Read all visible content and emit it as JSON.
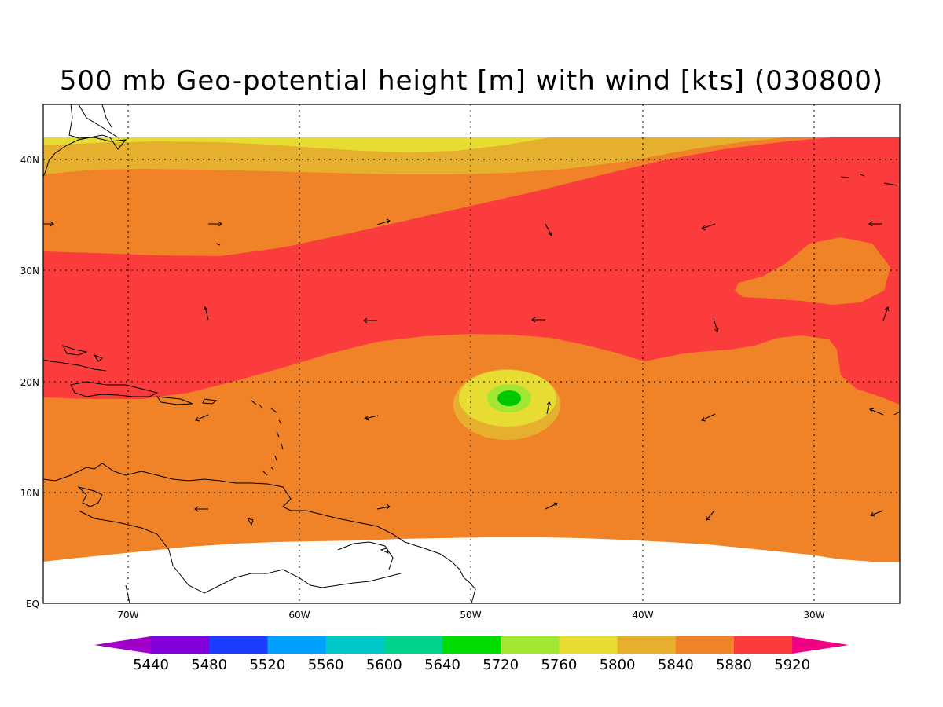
{
  "title": "500 mb Geo-potential height [m] with wind [kts] (030800)",
  "map": {
    "lat_labels": [
      "40N",
      "30N",
      "20N",
      "10N",
      "EQ"
    ],
    "lon_labels": [
      "70W",
      "60W",
      "50W",
      "40W",
      "30W"
    ],
    "lat_range": [
      0,
      45
    ],
    "lon_range": [
      -75,
      -25
    ],
    "field_colors": {
      "5720": "#00c800",
      "5760": "#a0e632",
      "5800": "#e6dc32",
      "5840": "#e6af2d",
      "5880": "#f08228",
      "5920": "#fa3c3c"
    }
  },
  "colorbar": {
    "labels": [
      "5440",
      "5480",
      "5520",
      "5560",
      "5600",
      "5640",
      "5720",
      "5760",
      "5800",
      "5840",
      "5880",
      "5920"
    ],
    "colors": [
      "#a000c8",
      "#8200dc",
      "#1e3cff",
      "#00a0ff",
      "#00c8c8",
      "#00d28c",
      "#00dc00",
      "#a0e632",
      "#e6dc32",
      "#e6af2d",
      "#f08228",
      "#fa3c3c",
      "#f00082"
    ]
  }
}
